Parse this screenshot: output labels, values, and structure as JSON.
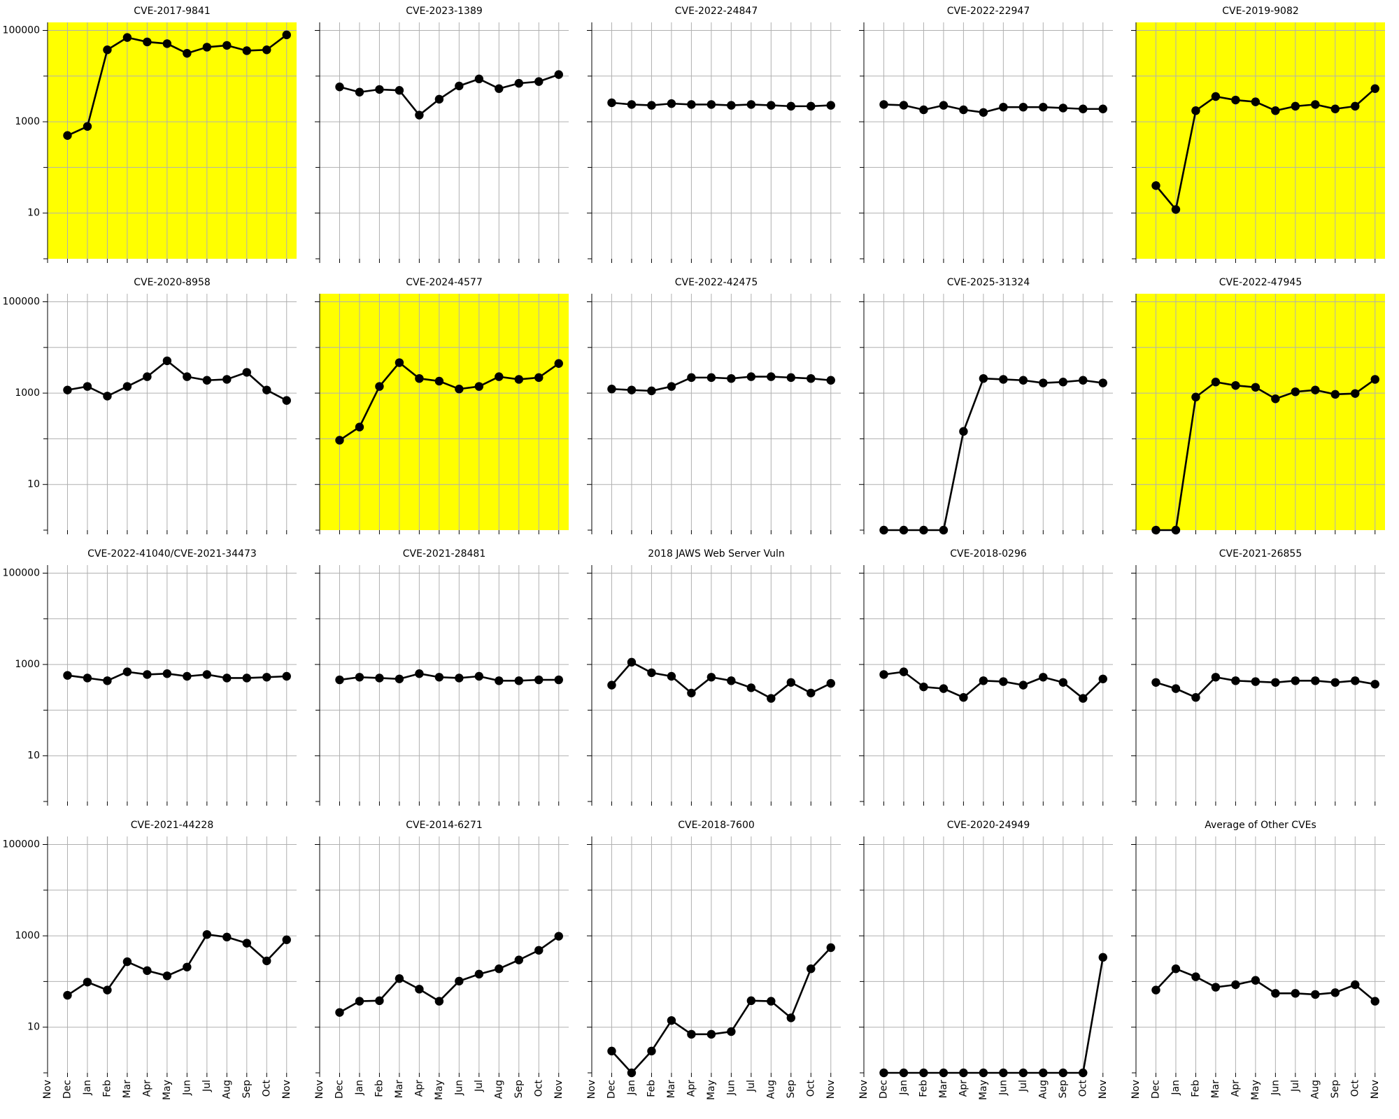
{
  "chart_data": [
    {
      "type": "line",
      "title": "CVE-2017-9841",
      "values": [
        null,
        500,
        790,
        37600,
        70000,
        56000,
        51300,
        31500,
        43000,
        47000,
        36000,
        37600,
        80000
      ],
      "ylim": [
        1,
        150000
      ],
      "yticks": [
        10,
        1000,
        100000
      ],
      "minor_yticks": [
        1,
        100,
        10000
      ],
      "log_y": true,
      "grid": true,
      "color": "#000000",
      "background": "#ffff00"
    },
    {
      "type": "line",
      "title": "CVE-2023-1389",
      "values": [
        null,
        5800,
        4450,
        5100,
        4870,
        1400,
        3120,
        6080,
        8670,
        5320,
        6950,
        7590,
        10800
      ],
      "ylim": [
        1,
        150000
      ],
      "yticks": [
        10,
        1000,
        100000
      ],
      "minor_yticks": [
        1,
        100,
        10000
      ],
      "log_y": true,
      "grid": true,
      "color": "#000000",
      "background": "#ffffff"
    },
    {
      "type": "line",
      "title": "CVE-2022-24847",
      "values": [
        null,
        2610,
        2390,
        2290,
        2500,
        2390,
        2390,
        2290,
        2390,
        2290,
        2190,
        2190,
        2290
      ],
      "ylim": [
        1,
        150000
      ],
      "yticks": [
        10,
        1000,
        100000
      ],
      "minor_yticks": [
        1,
        100,
        10000
      ],
      "log_y": true,
      "grid": true,
      "color": "#000000",
      "background": "#ffffff"
    },
    {
      "type": "line",
      "title": "CVE-2022-22947",
      "values": [
        null,
        2390,
        2300,
        1830,
        2290,
        1830,
        1600,
        2090,
        2090,
        2090,
        2000,
        1910,
        1910
      ],
      "ylim": [
        1,
        150000
      ],
      "yticks": [
        10,
        1000,
        100000
      ],
      "minor_yticks": [
        1,
        100,
        10000
      ],
      "log_y": true,
      "grid": true,
      "color": "#000000",
      "background": "#ffffff"
    },
    {
      "type": "line",
      "title": "CVE-2019-9082",
      "values": [
        null,
        40,
        12,
        1750,
        3570,
        2990,
        2730,
        1750,
        2190,
        2390,
        1910,
        2190,
        5320
      ],
      "ylim": [
        1,
        150000
      ],
      "yticks": [
        10,
        1000,
        100000
      ],
      "minor_yticks": [
        1,
        100,
        10000
      ],
      "log_y": true,
      "grid": true,
      "color": "#000000",
      "background": "#ffff00"
    },
    {
      "type": "line",
      "title": "CVE-2020-8958",
      "values": [
        null,
        1170,
        1400,
        860,
        1400,
        2290,
        5100,
        2290,
        1910,
        2000,
        2850,
        1170,
        690
      ],
      "ylim": [
        1,
        150000
      ],
      "yticks": [
        10,
        1000,
        100000
      ],
      "minor_yticks": [
        1,
        100,
        10000
      ],
      "log_y": true,
      "grid": true,
      "color": "#000000",
      "background": "#ffffff"
    },
    {
      "type": "line",
      "title": "CVE-2024-4577",
      "values": [
        null,
        93,
        181,
        1400,
        4650,
        2090,
        1830,
        1230,
        1400,
        2290,
        2000,
        2190,
        4450
      ],
      "ylim": [
        1,
        150000
      ],
      "yticks": [
        10,
        1000,
        100000
      ],
      "minor_yticks": [
        1,
        100,
        10000
      ],
      "log_y": true,
      "grid": true,
      "color": "#000000",
      "background": "#ffff00"
    },
    {
      "type": "line",
      "title": "CVE-2022-42475",
      "values": [
        null,
        1230,
        1170,
        1120,
        1400,
        2190,
        2190,
        2090,
        2290,
        2290,
        2190,
        2090,
        1910
      ],
      "ylim": [
        1,
        150000
      ],
      "yticks": [
        10,
        1000,
        100000
      ],
      "minor_yticks": [
        1,
        100,
        10000
      ],
      "log_y": true,
      "grid": true,
      "color": "#000000",
      "background": "#ffffff"
    },
    {
      "type": "line",
      "title": "CVE-2025-31324",
      "values": [
        null,
        1,
        1,
        1,
        1,
        145,
        2090,
        2000,
        1910,
        1670,
        1750,
        1910,
        1670
      ],
      "ylim": [
        1,
        150000
      ],
      "yticks": [
        10,
        1000,
        100000
      ],
      "minor_yticks": [
        1,
        100,
        10000
      ],
      "log_y": true,
      "grid": true,
      "color": "#000000",
      "background": "#ffffff"
    },
    {
      "type": "line",
      "title": "CVE-2022-47945",
      "values": [
        null,
        1,
        1,
        820,
        1750,
        1470,
        1340,
        750,
        1070,
        1170,
        940,
        980,
        2000
      ],
      "ylim": [
        1,
        150000
      ],
      "yticks": [
        10,
        1000,
        100000
      ],
      "minor_yticks": [
        1,
        100,
        10000
      ],
      "log_y": true,
      "grid": true,
      "color": "#000000",
      "background": "#ffff00"
    },
    {
      "type": "line",
      "title": "CVE-2022-41040/CVE-2021-34473",
      "values": [
        null,
        577,
        505,
        441,
        690,
        603,
        630,
        551,
        603,
        505,
        505,
        527,
        551
      ],
      "ylim": [
        1,
        150000
      ],
      "yticks": [
        10,
        1000,
        100000
      ],
      "minor_yticks": [
        1,
        100,
        10000
      ],
      "log_y": true,
      "grid": true,
      "color": "#000000",
      "background": "#ffffff"
    },
    {
      "type": "line",
      "title": "CVE-2021-28481",
      "values": [
        null,
        461,
        527,
        505,
        482,
        630,
        527,
        505,
        551,
        441,
        441,
        461,
        461
      ],
      "ylim": [
        1,
        150000
      ],
      "yticks": [
        10,
        1000,
        100000
      ],
      "minor_yticks": [
        1,
        100,
        10000
      ],
      "log_y": true,
      "grid": true,
      "color": "#000000",
      "background": "#ffffff"
    },
    {
      "type": "line",
      "title": "2018 JAWS Web Server Vuln",
      "values": [
        null,
        353,
        1120,
        659,
        551,
        237,
        527,
        441,
        309,
        181,
        404,
        237,
        386
      ],
      "ylim": [
        1,
        150000
      ],
      "yticks": [
        10,
        1000,
        100000
      ],
      "minor_yticks": [
        1,
        100,
        10000
      ],
      "log_y": true,
      "grid": true,
      "color": "#000000",
      "background": "#ffffff"
    },
    {
      "type": "line",
      "title": "CVE-2018-0296",
      "values": [
        null,
        603,
        690,
        323,
        296,
        190,
        441,
        422,
        353,
        527,
        404,
        181,
        482
      ],
      "ylim": [
        1,
        150000
      ],
      "yticks": [
        10,
        1000,
        100000
      ],
      "minor_yticks": [
        1,
        100,
        10000
      ],
      "log_y": true,
      "grid": true,
      "color": "#000000",
      "background": "#ffffff"
    },
    {
      "type": "line",
      "title": "CVE-2021-26855",
      "values": [
        null,
        404,
        296,
        190,
        527,
        441,
        422,
        404,
        441,
        441,
        404,
        441,
        370
      ],
      "ylim": [
        1,
        150000
      ],
      "yticks": [
        10,
        1000,
        100000
      ],
      "minor_yticks": [
        1,
        100,
        10000
      ],
      "log_y": true,
      "grid": true,
      "color": "#000000",
      "background": "#ffffff"
    },
    {
      "type": "line",
      "title": "CVE-2021-44228",
      "categories": [
        "Nov",
        "Dec",
        "Jan",
        "Feb",
        "Mar",
        "Apr",
        "May",
        "Jun",
        "Jul",
        "Aug",
        "Sep",
        "Oct",
        "Nov"
      ],
      "values": [
        null,
        50,
        97,
        65,
        271,
        173,
        133,
        207,
        1070,
        940,
        690,
        283,
        820
      ],
      "ylim": [
        1,
        150000
      ],
      "yticks": [
        10,
        1000,
        100000
      ],
      "minor_yticks": [
        1,
        100,
        10000
      ],
      "log_y": true,
      "grid": true,
      "color": "#000000",
      "background": "#ffffff"
    },
    {
      "type": "line",
      "title": "CVE-2014-6271",
      "categories": [
        "Nov",
        "Dec",
        "Jan",
        "Feb",
        "Mar",
        "Apr",
        "May",
        "Jun",
        "Jul",
        "Aug",
        "Sep",
        "Oct",
        "Nov"
      ],
      "values": [
        null,
        21,
        37,
        38,
        116,
        68,
        37,
        102,
        145,
        190,
        296,
        482,
        980
      ],
      "ylim": [
        1,
        150000
      ],
      "yticks": [
        10,
        1000,
        100000
      ],
      "minor_yticks": [
        1,
        100,
        10000
      ],
      "log_y": true,
      "grid": true,
      "color": "#000000",
      "background": "#ffffff"
    },
    {
      "type": "line",
      "title": "CVE-2018-7600",
      "categories": [
        "Nov",
        "Dec",
        "Jan",
        "Feb",
        "Mar",
        "Apr",
        "May",
        "Jun",
        "Jul",
        "Aug",
        "Sep",
        "Oct",
        "Nov"
      ],
      "values": [
        null,
        3,
        1,
        3,
        14,
        7,
        7,
        8,
        38,
        37,
        16,
        190,
        551
      ],
      "ylim": [
        1,
        150000
      ],
      "yticks": [
        10,
        1000,
        100000
      ],
      "minor_yticks": [
        1,
        100,
        10000
      ],
      "log_y": true,
      "grid": true,
      "color": "#000000",
      "background": "#ffffff"
    },
    {
      "type": "line",
      "title": "CVE-2020-24949",
      "categories": [
        "Nov",
        "Dec",
        "Jan",
        "Feb",
        "Mar",
        "Apr",
        "May",
        "Jun",
        "Jul",
        "Aug",
        "Sep",
        "Oct",
        "Nov"
      ],
      "values": [
        null,
        1,
        1,
        1,
        1,
        1,
        1,
        1,
        1,
        1,
        1,
        1,
        338
      ],
      "ylim": [
        1,
        150000
      ],
      "yticks": [
        10,
        1000,
        100000
      ],
      "minor_yticks": [
        1,
        100,
        10000
      ],
      "log_y": true,
      "grid": true,
      "color": "#000000",
      "background": "#ffffff"
    },
    {
      "type": "line",
      "title": "Average of Other CVEs",
      "categories": [
        "Nov",
        "Dec",
        "Jan",
        "Feb",
        "Mar",
        "Apr",
        "May",
        "Jun",
        "Jul",
        "Aug",
        "Sep",
        "Oct",
        "Nov"
      ],
      "values": [
        null,
        65,
        190,
        127,
        75,
        85,
        106,
        55,
        55,
        52,
        57,
        85,
        37
      ],
      "ylim": [
        1,
        150000
      ],
      "yticks": [
        10,
        1000,
        100000
      ],
      "minor_yticks": [
        1,
        100,
        10000
      ],
      "log_y": true,
      "grid": true,
      "color": "#000000",
      "background": "#ffffff"
    }
  ]
}
